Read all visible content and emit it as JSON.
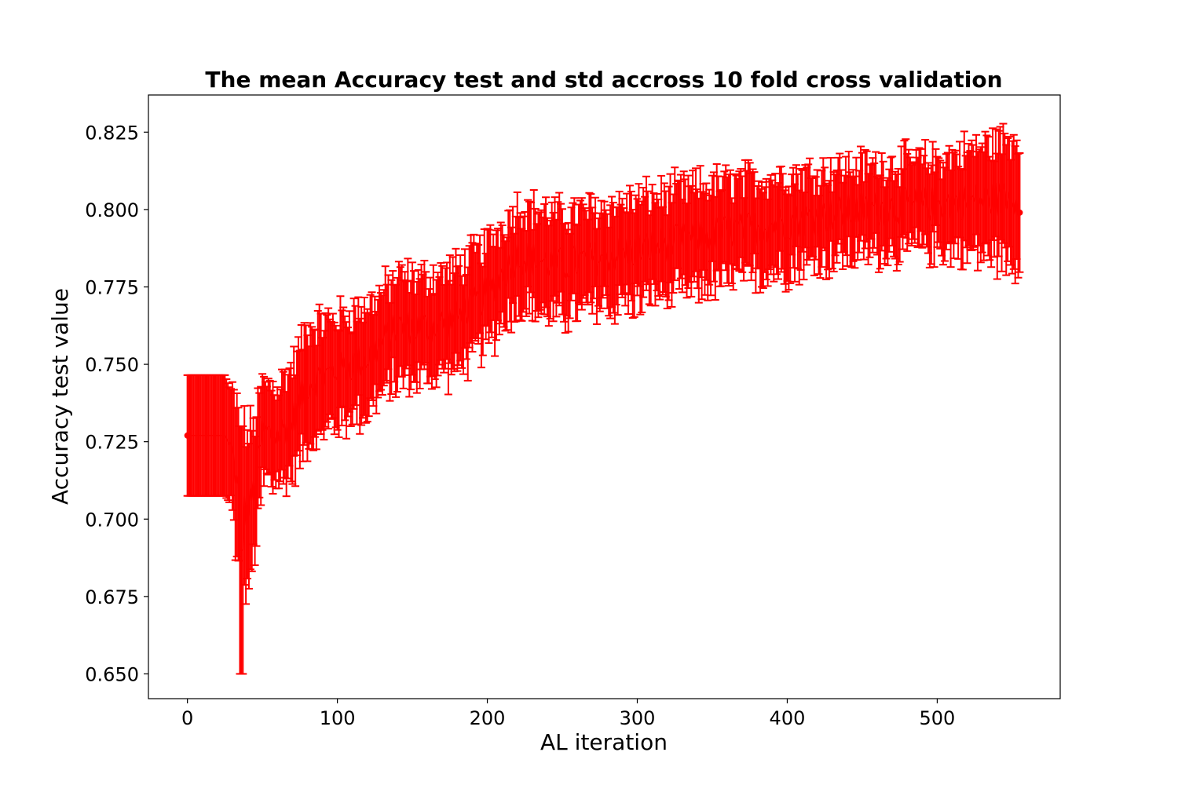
{
  "chart_data": {
    "type": "errorbar",
    "title": "The mean Accuracy test and std accross 10 fold cross validation",
    "xlabel": "AL iteration",
    "ylabel": "Accuracy test value",
    "xlim": [
      -26,
      582
    ],
    "ylim": [
      0.642,
      0.837
    ],
    "x_ticks": [
      0,
      100,
      200,
      300,
      400,
      500
    ],
    "y_ticks": [
      0.65,
      0.675,
      0.7,
      0.725,
      0.75,
      0.775,
      0.8,
      0.825
    ],
    "x_tick_labels": [
      "0",
      "100",
      "200",
      "300",
      "400",
      "500"
    ],
    "y_tick_labels": [
      "0.650",
      "0.675",
      "0.700",
      "0.725",
      "0.750",
      "0.775",
      "0.800",
      "0.825"
    ],
    "grid": false,
    "series_color": "#ff0000",
    "n_points": 556,
    "x_range": [
      0,
      555
    ],
    "mean_profile": {
      "x": [
        0,
        25,
        30,
        35,
        40,
        45,
        50,
        60,
        70,
        80,
        100,
        120,
        140,
        160,
        180,
        200,
        220,
        250,
        300,
        350,
        400,
        450,
        500,
        555
      ],
      "y": [
        0.727,
        0.727,
        0.722,
        0.705,
        0.702,
        0.71,
        0.728,
        0.727,
        0.732,
        0.744,
        0.748,
        0.752,
        0.762,
        0.762,
        0.765,
        0.773,
        0.785,
        0.782,
        0.787,
        0.792,
        0.796,
        0.8,
        0.802,
        0.804
      ]
    },
    "std_profile": {
      "x": [
        0,
        25,
        30,
        35,
        40,
        45,
        50,
        60,
        70,
        80,
        100,
        150,
        200,
        250,
        300,
        350,
        400,
        450,
        500,
        555
      ],
      "y": [
        0.0195,
        0.0195,
        0.018,
        0.028,
        0.025,
        0.022,
        0.016,
        0.016,
        0.017,
        0.018,
        0.017,
        0.016,
        0.016,
        0.016,
        0.016,
        0.016,
        0.015,
        0.014,
        0.014,
        0.02
      ]
    }
  }
}
